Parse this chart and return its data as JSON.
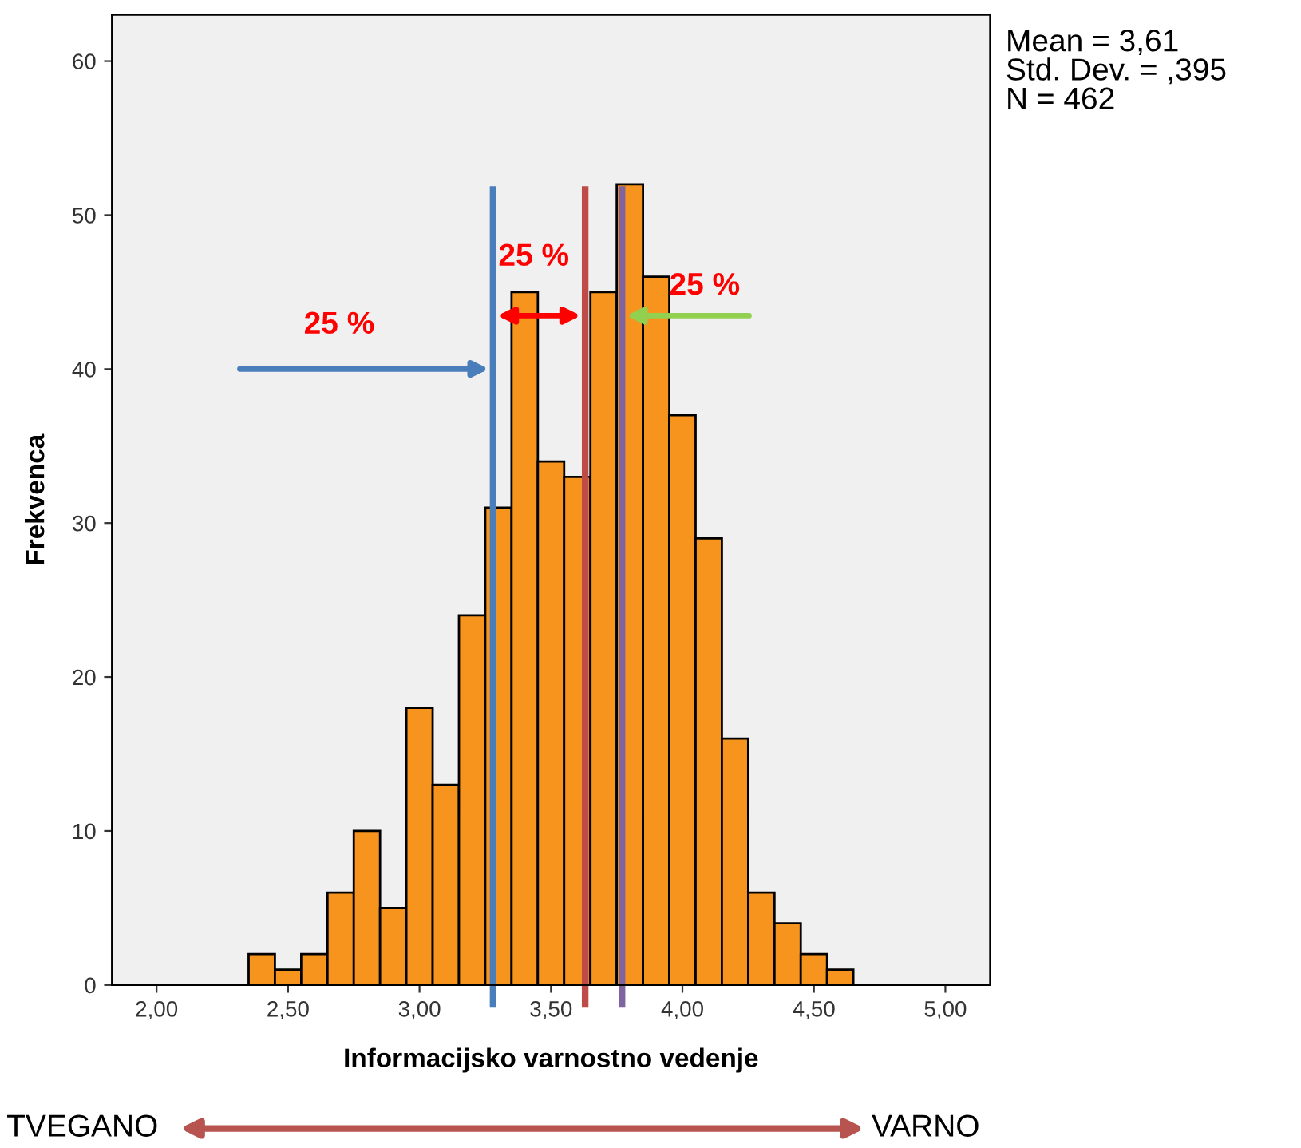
{
  "chart_data": {
    "type": "histogram",
    "xlabel": "Informacijsko varnostno vedenje",
    "ylabel": "Frekvenca",
    "bins": [
      2.35,
      2.45,
      2.55,
      2.65,
      2.75,
      2.85,
      2.95,
      3.05,
      3.15,
      3.25,
      3.35,
      3.45,
      3.55,
      3.65,
      3.75,
      3.85,
      3.95,
      4.05,
      4.15,
      4.25,
      4.35,
      4.45,
      4.55,
      4.65
    ],
    "values": [
      2,
      1,
      2,
      6,
      10,
      5,
      18,
      13,
      24,
      31,
      45,
      34,
      33,
      45,
      52,
      46,
      37,
      29,
      16,
      6,
      4,
      2,
      1
    ],
    "color": "#f7941d",
    "xlim": [
      1.83,
      5.17
    ],
    "xticks": [
      {
        "value": 2.0,
        "label": "2,00"
      },
      {
        "value": 2.5,
        "label": "2,50"
      },
      {
        "value": 3.0,
        "label": "3,00"
      },
      {
        "value": 3.5,
        "label": "3,50"
      },
      {
        "value": 4.0,
        "label": "4,00"
      },
      {
        "value": 4.5,
        "label": "4,50"
      },
      {
        "value": 5.0,
        "label": "5,00"
      }
    ],
    "ylim": [
      0,
      63
    ],
    "yticks": [
      0,
      10,
      20,
      30,
      40,
      50,
      60
    ],
    "grid": false,
    "ref_lines": [
      {
        "axis": "x",
        "value": 3.28,
        "color": "#4a7ebb"
      },
      {
        "axis": "x",
        "value": 3.63,
        "color": "#be4b48"
      },
      {
        "axis": "x",
        "value": 3.77,
        "color": "#8064a2"
      }
    ],
    "annotations": [
      "25 %",
      "25 %",
      "25 %",
      "Mean = 3,61\nStd. Dev. = ,395\nN = 462",
      "TVEGANO",
      "VARNO"
    ]
  }
}
